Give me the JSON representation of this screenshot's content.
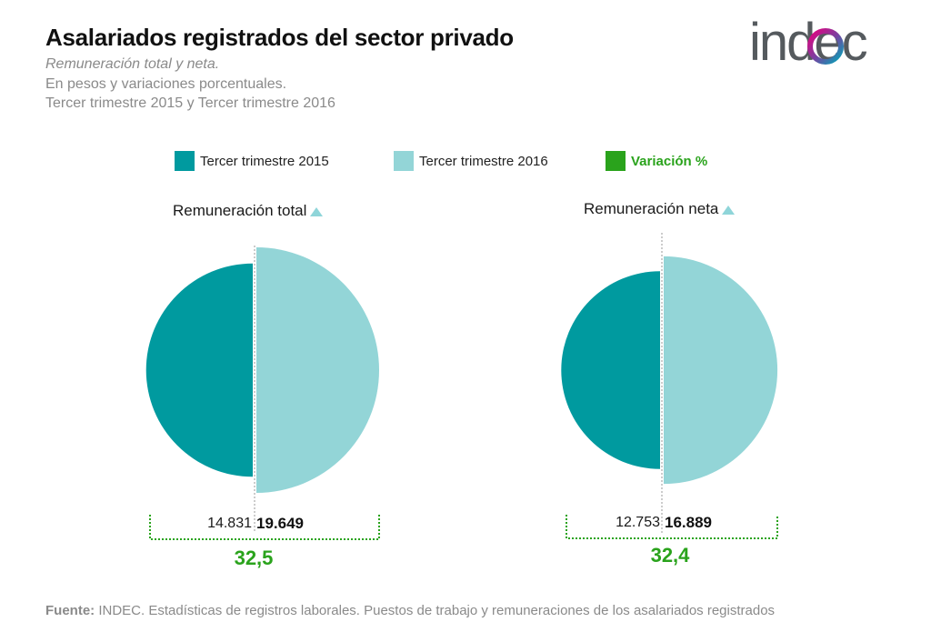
{
  "header": {
    "title": "Asalariados registrados del sector privado",
    "subtitle_1": "Remuneración total y neta.",
    "subtitle_2": "En pesos y variaciones porcentuales.",
    "subtitle_3": "Tercer trimestre 2015  y Tercer trimestre 2016"
  },
  "logo": {
    "text": "indec"
  },
  "legend": {
    "item_2015": "Tercer trimestre 2015",
    "item_2016": "Tercer trimestre 2016",
    "item_var": "Variación %"
  },
  "colors": {
    "q3_2015": "#009a9f",
    "q3_2016": "#93d5d7",
    "variation": "#2aa31c"
  },
  "chart_data": [
    {
      "type": "pie",
      "title": "Remuneración total",
      "icon": "triangle-up-icon",
      "categories": [
        "Tercer trimestre 2015",
        "Tercer trimestre 2016"
      ],
      "values": [
        14831,
        19649
      ],
      "labels": [
        "14.831",
        "19.649"
      ],
      "variation": "32,5"
    },
    {
      "type": "pie",
      "title": "Remuneración neta",
      "icon": "triangle-up-icon",
      "categories": [
        "Tercer trimestre 2015",
        "Tercer trimestre 2016"
      ],
      "values": [
        12753,
        16889
      ],
      "labels": [
        "12.753",
        "16.889"
      ],
      "variation": "32,4"
    }
  ],
  "footer": {
    "source_label": "Fuente:",
    "source_text": " INDEC. Estadísticas de registros laborales. Puestos de trabajo y remuneraciones de los asalariados registrados"
  }
}
